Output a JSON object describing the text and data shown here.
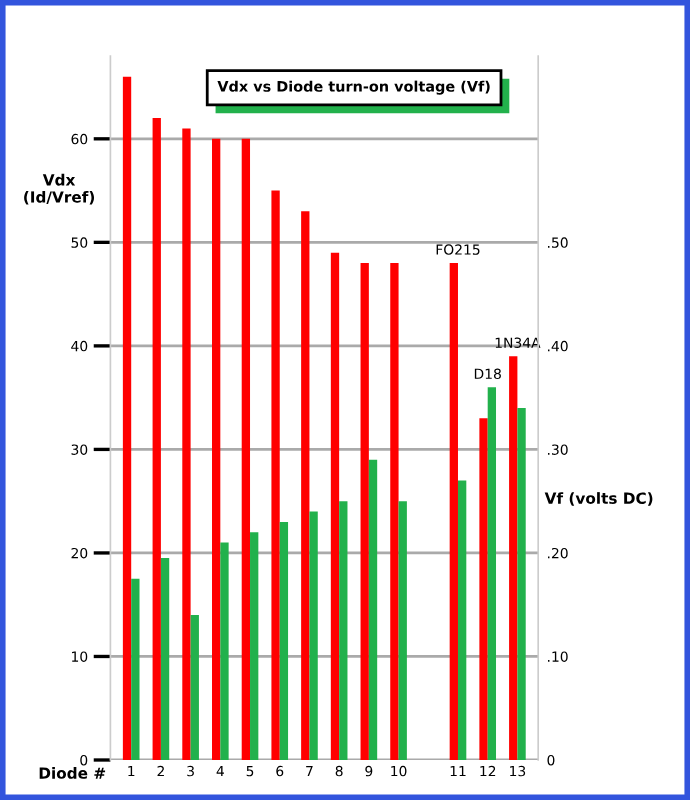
{
  "chart_data": {
    "type": "bar",
    "title": "Vdx vs Diode turn-on voltage (Vf)",
    "xlabel": "Diode #",
    "ylabel": "Vdx\n(Id/Vref)",
    "y2label": "Vf (volts DC)",
    "categories": [
      "1",
      "2",
      "3",
      "4",
      "5",
      "6",
      "7",
      "8",
      "9",
      "10",
      null,
      "11",
      "12",
      "13"
    ],
    "series": [
      {
        "color": "#ff0000",
        "values": [
          66,
          62,
          61,
          60,
          60,
          55,
          53,
          49,
          48,
          48,
          null,
          48,
          33,
          39
        ]
      },
      {
        "color": "#22b14c",
        "axis": "y2",
        "values": [
          0.175,
          0.195,
          0.14,
          0.21,
          0.22,
          0.23,
          0.24,
          0.25,
          0.29,
          0.25,
          null,
          0.27,
          0.36,
          0.34
        ]
      }
    ],
    "ylim": [
      0,
      68
    ],
    "yticks": [
      0,
      10,
      20,
      30,
      40,
      50,
      60
    ],
    "y2lim": [
      0,
      0.68
    ],
    "y2ticks": [
      0,
      {
        "value": 0.1,
        "label": ".10"
      },
      {
        "value": 0.2,
        "label": ".20"
      },
      {
        "value": 0.3,
        "label": ".30"
      },
      {
        "value": 0.4,
        "label": ".40"
      },
      {
        "value": 0.5,
        "label": ".50"
      }
    ],
    "grid": "y",
    "annotations": [
      {
        "text": "FO215",
        "x": "11",
        "y": 48
      },
      {
        "text": "D18",
        "x": "12",
        "y": 36
      },
      {
        "text": "1N34A",
        "x": "13",
        "y": 39
      }
    ]
  }
}
